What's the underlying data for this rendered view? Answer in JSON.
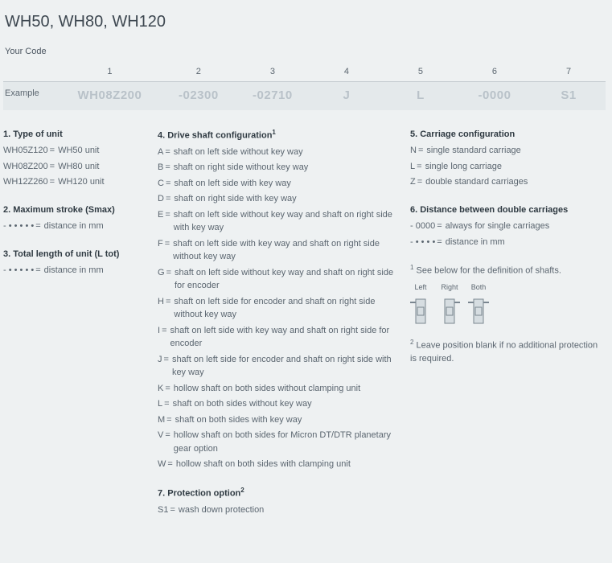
{
  "title": "WH50, WH80, WH120",
  "yourCode": "Your Code",
  "table": {
    "headers": [
      "1",
      "2",
      "3",
      "4",
      "5",
      "6",
      "7"
    ],
    "exampleLabel": "Example",
    "example": [
      "WH08Z200",
      "-02300",
      "-02710",
      "J",
      "L",
      "-0000",
      "S1"
    ]
  },
  "col1": {
    "s1": {
      "title": "1. Type of unit",
      "rows": [
        {
          "k": "WH05Z120",
          "v": "WH50 unit"
        },
        {
          "k": "WH08Z200",
          "v": "WH80 unit"
        },
        {
          "k": "WH12Z260",
          "v": "WH120 unit"
        }
      ]
    },
    "s2": {
      "title": "2. Maximum stroke (Smax)",
      "rows": [
        {
          "k": "- • • • • •",
          "v": "distance in mm"
        }
      ]
    },
    "s3": {
      "title": "3. Total length of unit (L tot)",
      "rows": [
        {
          "k": "- • • • • •",
          "v": "distance in mm"
        }
      ]
    }
  },
  "col2": {
    "s4": {
      "title": "4. Drive shaft configuration",
      "sup": "1",
      "rows": [
        {
          "k": "A",
          "v": "shaft on left side without key way"
        },
        {
          "k": "B",
          "v": "shaft on right side without key way"
        },
        {
          "k": "C",
          "v": "shaft on left side with key way"
        },
        {
          "k": "D",
          "v": "shaft on right side with key way"
        },
        {
          "k": "E",
          "v": "shaft on left side without key way and shaft on right side with key way"
        },
        {
          "k": "F",
          "v": "shaft on left side with key way and shaft on right side without key way"
        },
        {
          "k": "G",
          "v": "shaft on left side without key way and shaft on right side for encoder"
        },
        {
          "k": "H",
          "v": "shaft on left side for encoder and shaft on right side without key way"
        },
        {
          "k": "I",
          "v": "shaft on left side with key way and shaft on right side for encoder"
        },
        {
          "k": "J",
          "v": "shaft on left side for encoder and shaft on right side with key way"
        },
        {
          "k": "K",
          "v": "hollow shaft on both sides without clamping unit"
        },
        {
          "k": "L",
          "v": "shaft on both sides without key way"
        },
        {
          "k": "M",
          "v": "shaft on both sides with key way"
        },
        {
          "k": "V",
          "v": "hollow shaft on both sides for Micron DT/DTR planetary gear option"
        },
        {
          "k": "W",
          "v": "hollow shaft on both sides with clamping unit"
        }
      ]
    },
    "s7": {
      "title": "7. Protection option",
      "sup": "2",
      "rows": [
        {
          "k": "S1",
          "v": "wash down protection"
        }
      ]
    }
  },
  "col3": {
    "s5": {
      "title": "5. Carriage configuration",
      "rows": [
        {
          "k": "N",
          "v": "single standard carriage"
        },
        {
          "k": "L",
          "v": "single long carriage"
        },
        {
          "k": "Z",
          "v": "double standard carriages"
        }
      ]
    },
    "s6": {
      "title": "6. Distance between double carriages",
      "rows": [
        {
          "k": "- 0000",
          "v": "always for single carriages"
        },
        {
          "k": "- • • • •",
          "v": "distance in mm"
        }
      ]
    },
    "foot1": {
      "sup": "1",
      "text": "See below for the definition of shafts."
    },
    "diagLabels": [
      "Left",
      "Right",
      "Both"
    ],
    "foot2": {
      "sup": "2",
      "text": "Leave position blank if no additional protection is required."
    }
  },
  "style": {
    "bg": "#eef1f2",
    "text": "#4a5560",
    "faint": "#b9c2c9",
    "diagStroke": "#7a8690",
    "diagFill": "#d6dde1"
  }
}
